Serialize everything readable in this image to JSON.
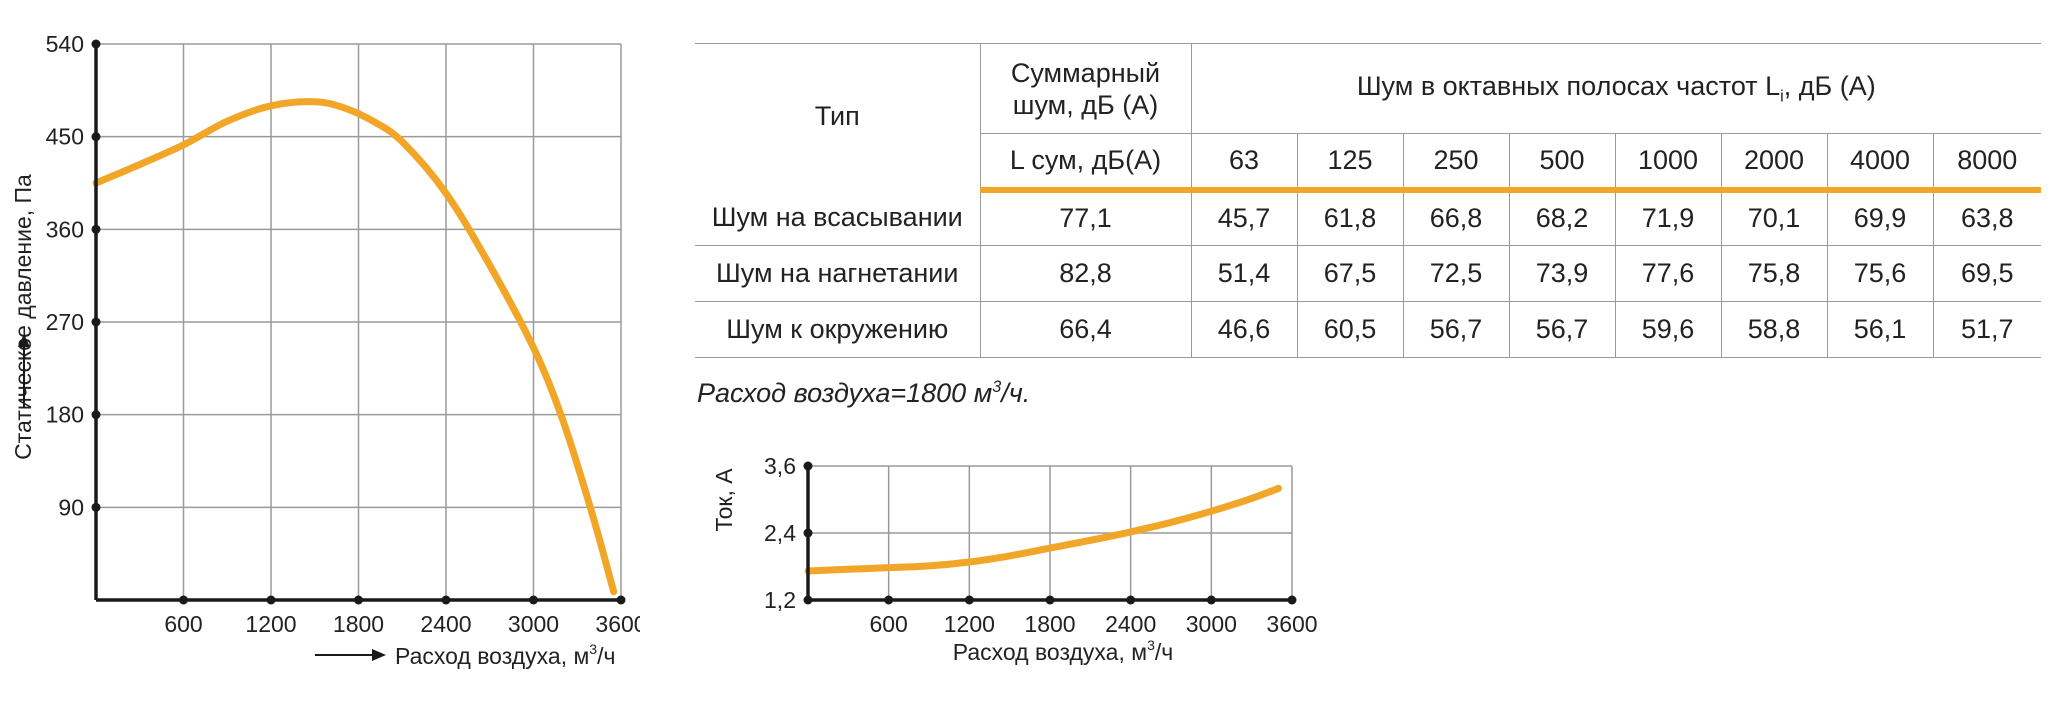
{
  "colors": {
    "curve": "#f2a628",
    "grid": "#9a9a9a",
    "axis": "#1a1a1a",
    "text": "#222222"
  },
  "chart_data": [
    {
      "type": "line",
      "ylabel": "Статическое давление, Па",
      "xlabel_prefix": "Расход воздуха, м",
      "xlabel_sup": "3",
      "xlabel_suffix": "/ч",
      "xlim": [
        0,
        3600
      ],
      "ylim": [
        0,
        540
      ],
      "x_ticks": [
        "600",
        "1200",
        "1800",
        "2400",
        "3000",
        "3600"
      ],
      "y_ticks": [
        "90",
        "180",
        "270",
        "360",
        "450",
        "540"
      ],
      "x_tick_values": [
        600,
        1200,
        1800,
        2400,
        3000,
        3600
      ],
      "y_tick_values": [
        90,
        180,
        270,
        360,
        450,
        540
      ],
      "grid": true,
      "series": [
        {
          "x": [
            0,
            300,
            600,
            900,
            1200,
            1500,
            1700,
            1900,
            2100,
            2400,
            2700,
            3000,
            3200,
            3400,
            3550
          ],
          "y": [
            405,
            423,
            442,
            465,
            480,
            484,
            478,
            465,
            445,
            395,
            325,
            245,
            175,
            85,
            8
          ]
        }
      ]
    },
    {
      "type": "line",
      "ylabel": "Ток, А",
      "xlabel_prefix": "Расход воздуха, м",
      "xlabel_sup": "3",
      "xlabel_suffix": "/ч",
      "xlim": [
        0,
        3600
      ],
      "ylim": [
        1.2,
        3.6
      ],
      "x_ticks": [
        "600",
        "1200",
        "1800",
        "2400",
        "3000",
        "3600"
      ],
      "y_ticks": [
        "1,2",
        "2,4",
        "3,6"
      ],
      "x_tick_values": [
        600,
        1200,
        1800,
        2400,
        3000,
        3600
      ],
      "y_tick_values": [
        1.2,
        2.4,
        3.6
      ],
      "grid": true,
      "series": [
        {
          "x": [
            0,
            300,
            600,
            900,
            1200,
            1500,
            1800,
            2100,
            2400,
            2700,
            3000,
            3300,
            3500
          ],
          "y": [
            1.72,
            1.75,
            1.78,
            1.81,
            1.88,
            1.99,
            2.13,
            2.27,
            2.42,
            2.59,
            2.79,
            3.02,
            3.2
          ]
        }
      ]
    }
  ],
  "table": {
    "type_header": "Тип",
    "total_header_line1": "Суммарный",
    "total_header_line2": "шум, дБ (А)",
    "octave_header_prefix": "Шум в октавных полосах частот L",
    "octave_header_sub": "i",
    "octave_header_suffix": ", дБ (А)",
    "total_subheader": "L сум, дБ(А)",
    "frequencies": [
      "63",
      "125",
      "250",
      "500",
      "1000",
      "2000",
      "4000",
      "8000"
    ],
    "rows": [
      {
        "label": "Шум на всасывании",
        "total": "77,1",
        "values": [
          "45,7",
          "61,8",
          "66,8",
          "68,2",
          "71,9",
          "70,1",
          "69,9",
          "63,8"
        ]
      },
      {
        "label": "Шум на нагнетании",
        "total": "82,8",
        "values": [
          "51,4",
          "67,5",
          "72,5",
          "73,9",
          "77,6",
          "75,8",
          "75,6",
          "69,5"
        ]
      },
      {
        "label": "Шум к окружению",
        "total": "66,4",
        "values": [
          "46,6",
          "60,5",
          "56,7",
          "56,7",
          "59,6",
          "58,8",
          "56,1",
          "51,7"
        ]
      }
    ]
  },
  "note": {
    "prefix": "Расход воздуха=1800 м",
    "sup": "3",
    "suffix": "/ч."
  }
}
